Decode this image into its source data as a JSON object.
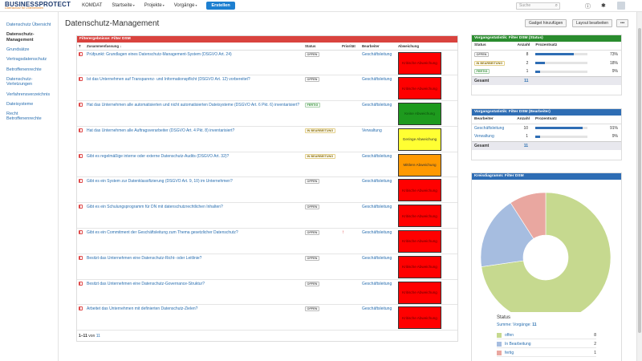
{
  "topbar": {
    "brand_a": "BUSINESS",
    "brand_b": "PROTECT",
    "tagline": "Datenschutz für Unternehmen",
    "nav": [
      "KOMDAT",
      "Startseite",
      "Projekte",
      "Vorgänge"
    ],
    "create_label": "Erstellen",
    "search_placeholder": "Suche",
    "icons": [
      "help-icon",
      "gear-icon",
      "avatar"
    ]
  },
  "sidebar": {
    "items": [
      {
        "label": "Datenschutz Übersicht",
        "active": false
      },
      {
        "label": "Datenschutz-Management",
        "active": true
      },
      {
        "label": "Grundsätze",
        "active": false
      },
      {
        "label": "Vertragsdatenschutz",
        "active": false
      },
      {
        "label": "Betroffenenrechte",
        "active": false
      },
      {
        "label": "Datenschutz-Verletzungen",
        "active": false
      },
      {
        "label": "Verfahrensverzeichnis",
        "active": false
      },
      {
        "label": "Dateisysteme",
        "active": false
      },
      {
        "label": "Recht Betroffenenrechte",
        "active": false
      }
    ]
  },
  "main": {
    "title": "Datenschutz-Management",
    "btn_gadget": "Gadget hinzufügen",
    "btn_layout": "Layout bearbeiten",
    "btn_more": "•••"
  },
  "filter_panel": {
    "title": "Filterergebnisse: Filter DSM",
    "headers": {
      "t": "T",
      "summary": "Zusammenfassung",
      "status": "Status",
      "prio": "Priorität",
      "assignee": "Bearbeiter",
      "deviation": "Abweichung"
    },
    "rows": [
      {
        "summary": "Prüfpunkt: Grundlagen eines Datenschutz-Management-System (DSGVO Art. 24)",
        "status": "OFFEN",
        "status_kind": "offen",
        "prio": "",
        "assignee": "Geschäftsleitung",
        "deviation": "Kritische Abweichung",
        "dev_color": "red"
      },
      {
        "summary": "Ist das Unternehmen auf Transparenz- und Informationspflicht (DSGVO Art. 12) vorbereitet?",
        "status": "OFFEN",
        "status_kind": "offen",
        "prio": "",
        "assignee": "Geschäftsleitung",
        "deviation": "Kritische Abweichung",
        "dev_color": "red"
      },
      {
        "summary": "Hat das Unternehmen alle automatisierten und nicht automatisierten Dateisysteme (DSGVO Art. 6 Pkt. 6) inventarisiert?",
        "status": "FERTIG",
        "status_kind": "fertig",
        "prio": "",
        "assignee": "Geschäftsleitung",
        "deviation": "Keine Abweichung",
        "dev_color": "green"
      },
      {
        "summary": "Hat das Unternehmen alle Auftragsverarbeiter (DSGVO Art. 4 Pkt. 8) inventarisiert?",
        "status": "IN BEARBEITUNG",
        "status_kind": "inb",
        "prio": "",
        "assignee": "Verwaltung",
        "deviation": "Geringe Abweichung",
        "dev_color": "yellow"
      },
      {
        "summary": "Gibt es regelmäßige interne oder externe Datenschutz-Audits (DSGVO Art. 32)?",
        "status": "IN BEARBEITUNG",
        "status_kind": "inb",
        "prio": "",
        "assignee": "Geschäftsleitung",
        "deviation": "Mittlere Abweichung",
        "dev_color": "orange"
      },
      {
        "summary": "Gibt es ein System zur Datenklassifizierung (DSGVO Art. 9, 10) im Unternehmen?",
        "status": "OFFEN",
        "status_kind": "offen",
        "prio": "",
        "assignee": "Geschäftsleitung",
        "deviation": "Kritische Abweichung",
        "dev_color": "red"
      },
      {
        "summary": "Gibt es ein Schulungsprogramm für DN mit datenschutzrechtlichen Inhalten?",
        "status": "OFFEN",
        "status_kind": "offen",
        "prio": "",
        "assignee": "Geschäftsleitung",
        "deviation": "Kritische Abweichung",
        "dev_color": "red"
      },
      {
        "summary": "Gibt es ein Commitment der Geschäftsleitung zum Thema gesetzlicher Datenschutz?",
        "status": "OFFEN",
        "status_kind": "offen",
        "prio": "↑",
        "assignee": "Geschäftsleitung",
        "deviation": "Kritische Abweichung",
        "dev_color": "red"
      },
      {
        "summary": "Besitzt das Unternehmen eine Datenschutz-Richt- oder Leitlinie?",
        "status": "OFFEN",
        "status_kind": "offen",
        "prio": "",
        "assignee": "Geschäftsleitung",
        "deviation": "Kritische Abweichung",
        "dev_color": "red"
      },
      {
        "summary": "Besitzt das Unternehmen eine Datenschutz-Governance-Struktur?",
        "status": "OFFEN",
        "status_kind": "offen",
        "prio": "",
        "assignee": "Geschäftsleitung",
        "deviation": "Kritische Abweichung",
        "dev_color": "red"
      },
      {
        "summary": "Arbeitet das Unternehmen mit definierten Datenschutz-Zielen?",
        "status": "OFFEN",
        "status_kind": "offen",
        "prio": "",
        "assignee": "Geschäftsleitung",
        "deviation": "Kritische Abweichung",
        "dev_color": "red"
      }
    ],
    "pager_range": "1–11",
    "pager_of": "von",
    "pager_total": "11"
  },
  "status_panel": {
    "title": "Vorgangsstatistik: Filter DSM (Status)",
    "headers": {
      "status": "Status",
      "count": "Anzahl",
      "pct": "Prozentsatz"
    },
    "rows": [
      {
        "label": "OFFEN",
        "kind": "offen",
        "count": "8",
        "pct_value": 73,
        "pct": "73%"
      },
      {
        "label": "IN BEARBEITUNG",
        "kind": "inb",
        "count": "2",
        "pct_value": 18,
        "pct": "18%"
      },
      {
        "label": "FERTIG",
        "kind": "fertig",
        "count": "1",
        "pct_value": 9,
        "pct": "9%"
      }
    ],
    "total_label": "Gesamt",
    "total": "11"
  },
  "assignee_panel": {
    "title": "Vorgangsstatistik: Filter DSM (Bearbeiter)",
    "headers": {
      "assignee": "Bearbeiter",
      "count": "Anzahl",
      "pct": "Prozentsatz"
    },
    "rows": [
      {
        "label": "Geschäftsleitung",
        "count": "10",
        "pct_value": 91,
        "pct": "91%"
      },
      {
        "label": "Verwaltung",
        "count": "1",
        "pct_value": 9,
        "pct": "9%"
      }
    ],
    "total_label": "Gesamt",
    "total": "11"
  },
  "pie_panel": {
    "title": "Kreisdiagramm: Filter DSM",
    "legend_title": "Status",
    "legend_sub_label": "Summe: Vorgänge:",
    "legend_sub_value": "11",
    "legend": [
      {
        "label": "offen",
        "count": "8",
        "color": "#c6d98f"
      },
      {
        "label": "In Bearbeitung",
        "count": "2",
        "color": "#a6bde0"
      },
      {
        "label": "fertig",
        "count": "1",
        "color": "#e9a7a0"
      }
    ]
  },
  "chart_data": {
    "type": "pie",
    "title": "",
    "categories": [
      "offen",
      "In Bearbeitung",
      "fertig"
    ],
    "values": [
      8,
      2,
      1
    ],
    "colors": [
      "#c6d98f",
      "#a6bde0",
      "#e9a7a0"
    ],
    "donut": true
  }
}
